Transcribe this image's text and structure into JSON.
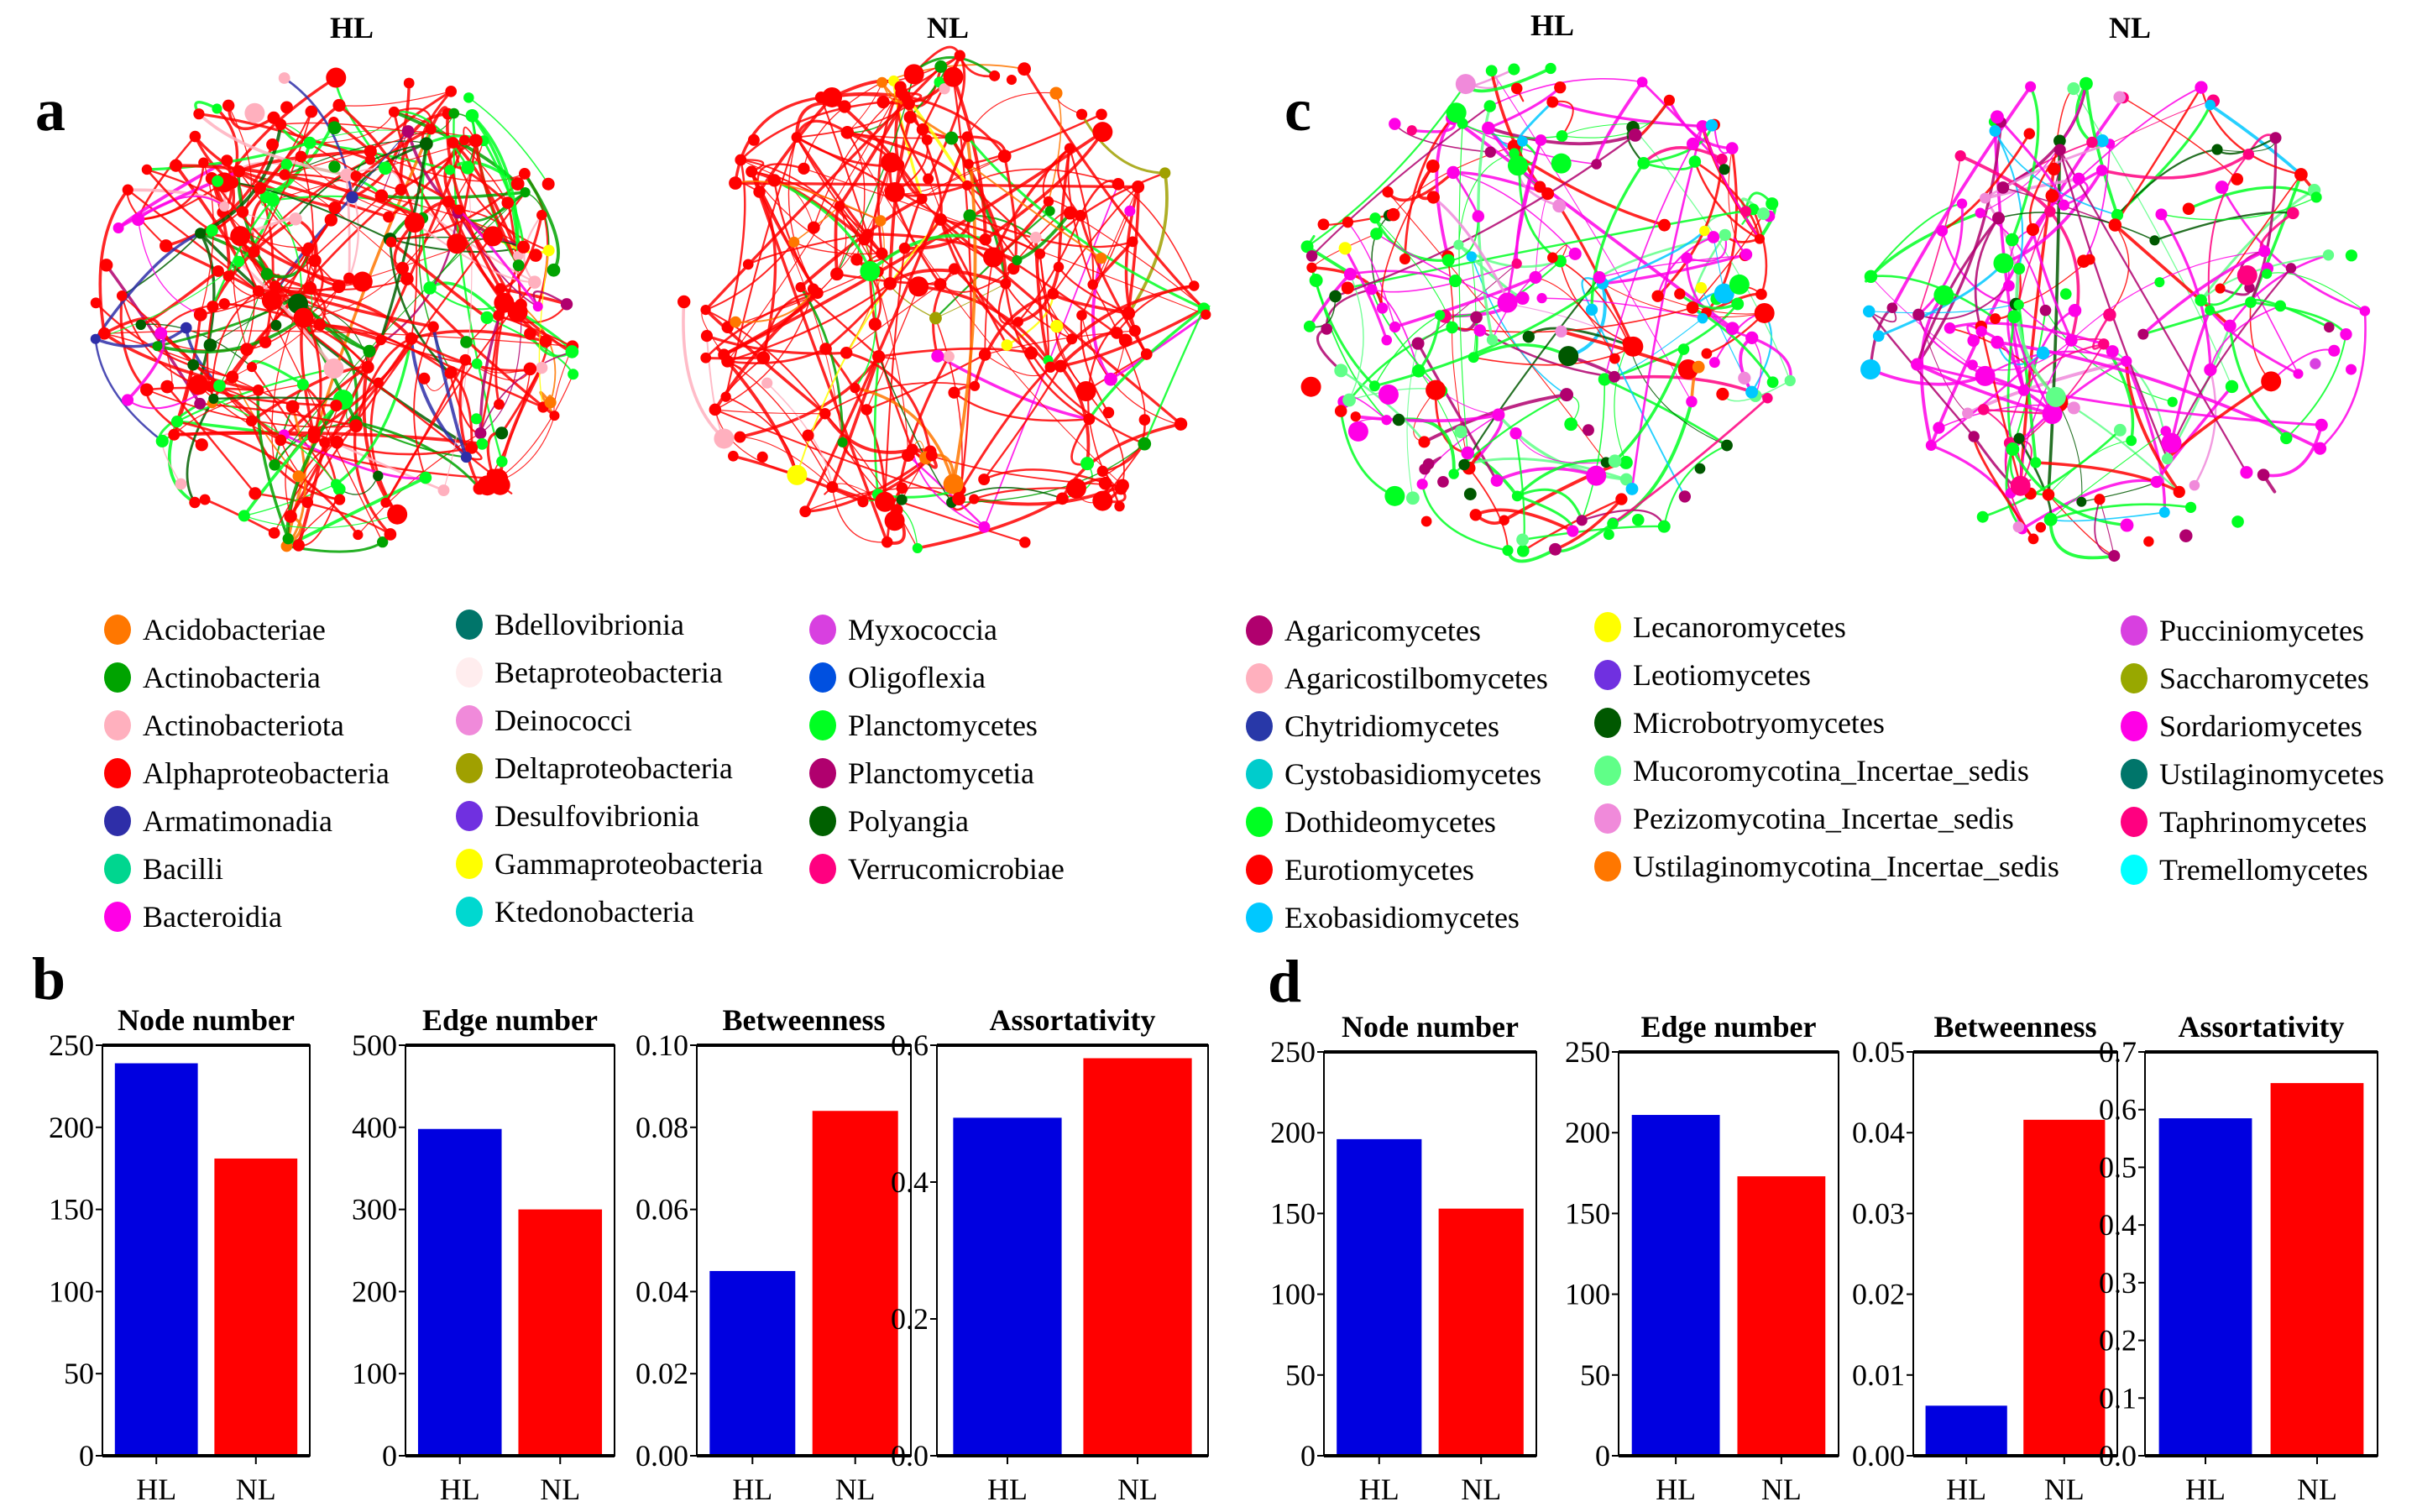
{
  "panels": {
    "a": "a",
    "b": "b",
    "c": "c",
    "d": "d"
  },
  "network_titles": {
    "a_hl": "HL",
    "a_nl": "NL",
    "c_hl": "HL",
    "c_nl": "NL"
  },
  "legend_bacteria": [
    {
      "label": "Acidobacteriae",
      "color": "#FF7700"
    },
    {
      "label": "Actinobacteria",
      "color": "#00A300"
    },
    {
      "label": "Actinobacteriota",
      "color": "#FFB0BE"
    },
    {
      "label": "Alphaproteobacteria",
      "color": "#FF0000"
    },
    {
      "label": "Armatimonadia",
      "color": "#2E2EA8"
    },
    {
      "label": "Bacilli",
      "color": "#00D68F"
    },
    {
      "label": "Bacteroidia",
      "color": "#FF00E6"
    },
    {
      "label": "Bdellovibrionia",
      "color": "#00756A"
    },
    {
      "label": "Betaproteobacteria",
      "color": "#FFEDEE"
    },
    {
      "label": "Deinococci",
      "color": "#F08ADA"
    },
    {
      "label": "Deltaproteobacteria",
      "color": "#A0A000"
    },
    {
      "label": "Desulfovibrionia",
      "color": "#7030E0"
    },
    {
      "label": "Gammaproteobacteria",
      "color": "#FFFF00"
    },
    {
      "label": "Ktedonobacteria",
      "color": "#00D8D0"
    },
    {
      "label": "Myxococcia",
      "color": "#D840E0"
    },
    {
      "label": "Oligoflexia",
      "color": "#0050E0"
    },
    {
      "label": "Planctomycetes",
      "color": "#00FF22"
    },
    {
      "label": "Planctomycetia",
      "color": "#B0006E"
    },
    {
      "label": "Polyangia",
      "color": "#006000"
    },
    {
      "label": "Verrucomicrobiae",
      "color": "#FF0080"
    }
  ],
  "legend_fungi": [
    {
      "label": "Agaricomycetes",
      "color": "#B0006E"
    },
    {
      "label": "Agaricostilbomycetes",
      "color": "#FFB0BE"
    },
    {
      "label": "Chytridiomycetes",
      "color": "#2838A8"
    },
    {
      "label": "Cystobasidiomycetes",
      "color": "#00CCCC"
    },
    {
      "label": "Dothideomycetes",
      "color": "#00FF22"
    },
    {
      "label": "Eurotiomycetes",
      "color": "#FF0000"
    },
    {
      "label": "Exobasidiomycetes",
      "color": "#00C8FF"
    },
    {
      "label": "Lecanoromycetes",
      "color": "#FFFF00"
    },
    {
      "label": "Leotiomycetes",
      "color": "#7030E0"
    },
    {
      "label": "Microbotryomycetes",
      "color": "#005800"
    },
    {
      "label": "Mucoromycotina_Incertae_sedis",
      "color": "#60FF88"
    },
    {
      "label": "Pezizomycotina_Incertae_sedis",
      "color": "#F08ADA"
    },
    {
      "label": "Ustilaginomycotina_Incertae_sedis",
      "color": "#FF7700"
    },
    {
      "label": "Pucciniomycetes",
      "color": "#D840E0"
    },
    {
      "label": "Saccharomycetes",
      "color": "#98A800"
    },
    {
      "label": "Sordariomycetes",
      "color": "#FF00E6"
    },
    {
      "label": "Ustilaginomycetes",
      "color": "#00756A"
    },
    {
      "label": "Taphrinomycetes",
      "color": "#FF0080"
    },
    {
      "label": "Tremellomycetes",
      "color": "#00FFFF"
    }
  ],
  "colors": {
    "HL": "#0000E0",
    "NL": "#FF0000"
  },
  "chart_data": [
    {
      "panel": "b",
      "type": "bar",
      "title": "Node number",
      "categories": [
        "HL",
        "NL"
      ],
      "values": [
        239,
        181
      ],
      "ylim": [
        0,
        250
      ],
      "yticks": [
        "0",
        "50",
        "100",
        "150",
        "200",
        "250"
      ]
    },
    {
      "panel": "b",
      "type": "bar",
      "title": "Edge number",
      "categories": [
        "HL",
        "NL"
      ],
      "values": [
        398,
        300
      ],
      "ylim": [
        0,
        500
      ],
      "yticks": [
        "0",
        "100",
        "200",
        "300",
        "400",
        "500"
      ]
    },
    {
      "panel": "b",
      "type": "bar",
      "title": "Betweenness",
      "categories": [
        "HL",
        "NL"
      ],
      "values": [
        0.045,
        0.084
      ],
      "ylim": [
        0,
        0.1
      ],
      "yticks": [
        "0.00",
        "0.02",
        "0.04",
        "0.06",
        "0.08",
        "0.10"
      ]
    },
    {
      "panel": "b",
      "type": "bar",
      "title": "Assortativity",
      "categories": [
        "HL",
        "NL"
      ],
      "values": [
        0.494,
        0.581
      ],
      "ylim": [
        0,
        0.6
      ],
      "yticks": [
        "0.0",
        "0.2",
        "0.4",
        "0.6"
      ]
    },
    {
      "panel": "d",
      "type": "bar",
      "title": "Node number",
      "categories": [
        "HL",
        "NL"
      ],
      "values": [
        196,
        153
      ],
      "ylim": [
        0,
        250
      ],
      "yticks": [
        "0",
        "50",
        "100",
        "150",
        "200",
        "250"
      ]
    },
    {
      "panel": "d",
      "type": "bar",
      "title": "Edge number",
      "categories": [
        "HL",
        "NL"
      ],
      "values": [
        211,
        173
      ],
      "ylim": [
        0,
        250
      ],
      "yticks": [
        "0",
        "50",
        "100",
        "150",
        "200",
        "250"
      ]
    },
    {
      "panel": "d",
      "type": "bar",
      "title": "Betweenness",
      "categories": [
        "HL",
        "NL"
      ],
      "values": [
        0.0062,
        0.0416
      ],
      "ylim": [
        0,
        0.05
      ],
      "yticks": [
        "0.00",
        "0.01",
        "0.02",
        "0.03",
        "0.04",
        "0.05"
      ]
    },
    {
      "panel": "d",
      "type": "bar",
      "title": "Assortativity",
      "categories": [
        "HL",
        "NL"
      ],
      "values": [
        0.585,
        0.646
      ],
      "ylim": [
        0,
        0.7
      ],
      "yticks": [
        "0.0",
        "0.1",
        "0.2",
        "0.3",
        "0.4",
        "0.5",
        "0.6",
        "0.7"
      ]
    }
  ]
}
